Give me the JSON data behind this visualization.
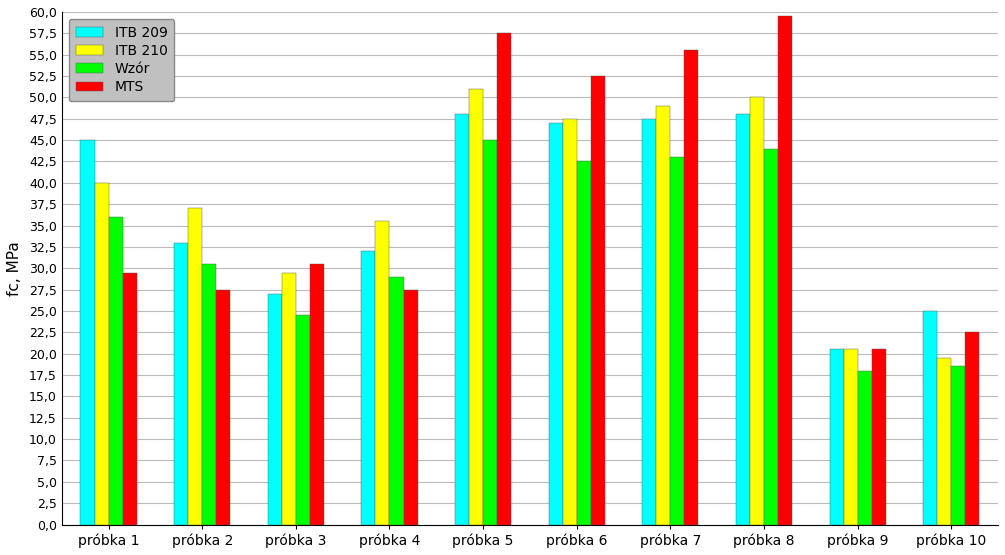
{
  "categories": [
    "próbka 1",
    "próbka 2",
    "próbka 3",
    "próbka 4",
    "próbka 5",
    "próbka 6",
    "próbka 7",
    "próbka 8",
    "próbka 9",
    "próbka 10"
  ],
  "series": {
    "ITB 209": [
      45.0,
      33.0,
      27.0,
      32.0,
      48.0,
      47.0,
      47.5,
      48.0,
      20.5,
      25.0
    ],
    "ITB 210": [
      40.0,
      37.0,
      29.5,
      35.5,
      51.0,
      47.5,
      49.0,
      50.0,
      20.5,
      19.5
    ],
    "Wzór": [
      36.0,
      30.5,
      24.5,
      29.0,
      45.0,
      42.5,
      43.0,
      44.0,
      18.0,
      18.5
    ],
    "MTS": [
      29.5,
      27.5,
      30.5,
      27.5,
      57.5,
      52.5,
      55.5,
      59.5,
      20.5,
      22.5
    ]
  },
  "colors": {
    "ITB 209": "#00FFFF",
    "ITB 210": "#FFFF00",
    "Wzór": "#00FF00",
    "MTS": "#FF0000"
  },
  "ylabel": "fc, MPa",
  "ylim": [
    0,
    60
  ],
  "ytick_step": 2.5,
  "background_color": "#FFFFFF",
  "plot_bg_color": "#FFFFFF",
  "grid_color": "#BBBBBB",
  "bar_edge_color": "#555555",
  "legend_labels": [
    "ITB 209",
    "ITB 210",
    "Wzór",
    "MTS"
  ],
  "legend_bg": "#C0C0C0",
  "figsize": [
    10.05,
    5.55
  ],
  "dpi": 100
}
